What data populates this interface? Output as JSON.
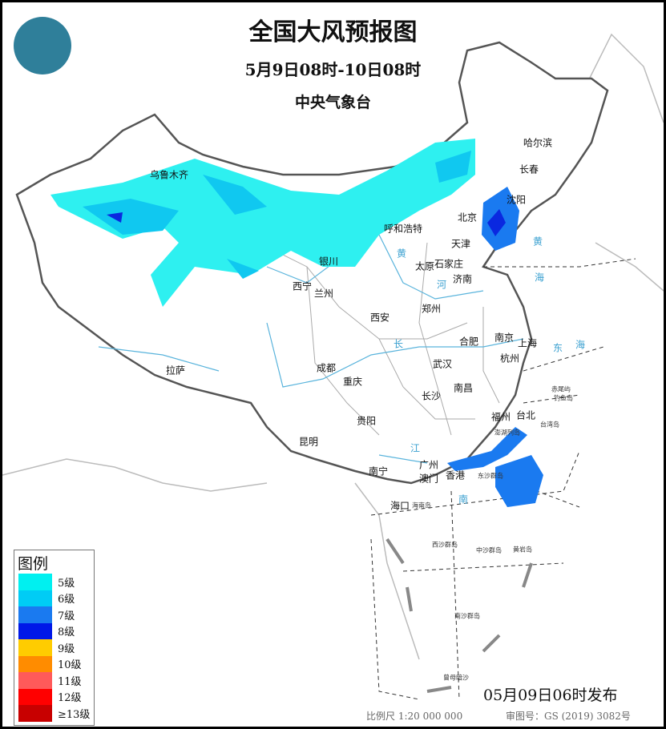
{
  "header": {
    "title": "全国大风预报图",
    "period": "5月9日08时-10日08时",
    "issuer": "中央气象台"
  },
  "legend": {
    "title": "图例",
    "items": [
      {
        "label": "5级",
        "color": "#00f0f0"
      },
      {
        "label": "6级",
        "color": "#00ccf5"
      },
      {
        "label": "7级",
        "color": "#1a7af0"
      },
      {
        "label": "8级",
        "color": "#0018e8"
      },
      {
        "label": "9级",
        "color": "#ffcc00"
      },
      {
        "label": "10级",
        "color": "#ff8c00"
      },
      {
        "label": "11级",
        "color": "#ff5a5a"
      },
      {
        "label": "12级",
        "color": "#ff0000"
      },
      {
        "label": "≥13级",
        "color": "#c80000"
      }
    ]
  },
  "cities": [
    "乌鲁木齐",
    "哈尔滨",
    "长春",
    "沈阳",
    "北京",
    "呼和浩特",
    "天津",
    "银川",
    "太原",
    "石家庄",
    "济南",
    "西宁",
    "兰州",
    "郑州",
    "西安",
    "南京",
    "合肥",
    "上海",
    "杭州",
    "武汉",
    "成都",
    "拉萨",
    "重庆",
    "南昌",
    "长沙",
    "福州",
    "台北",
    "贵阳",
    "昆明",
    "南宁",
    "广州",
    "香港",
    "澳门",
    "海口"
  ],
  "islands": [
    "海南岛",
    "台湾岛",
    "赤尾屿",
    "钓鱼岛",
    "澎湖列岛",
    "东沙群岛",
    "西沙群岛",
    "中沙群岛",
    "黄岩岛",
    "南沙群岛",
    "曾母暗沙"
  ],
  "seas": [
    "黄",
    "海",
    "东",
    "海",
    "南"
  ],
  "rivers": [
    "黄",
    "河",
    "长",
    "江"
  ],
  "footer": {
    "issued": "05月09日06时发布",
    "scale": "比例尺 1:20 000 000",
    "review": "审图号：GS (2019) 3082号"
  }
}
